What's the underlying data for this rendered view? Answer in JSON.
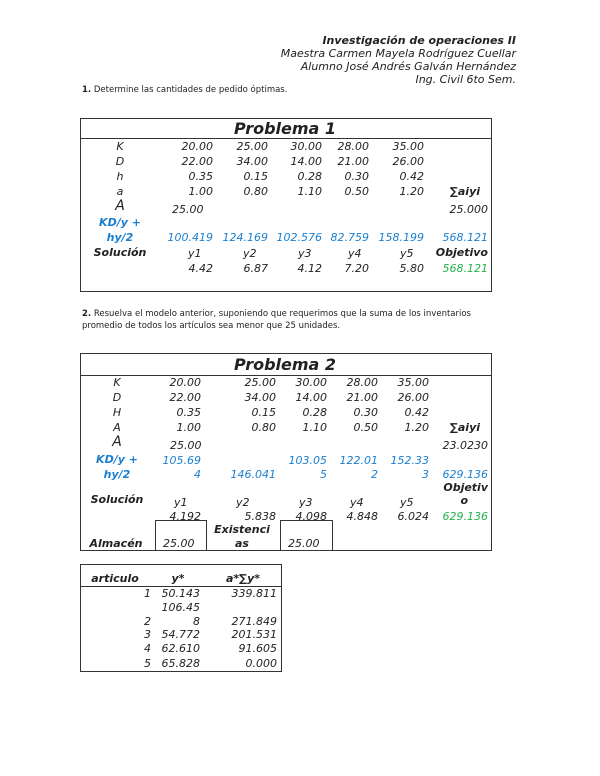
{
  "header": {
    "course": "Investigación de operaciones II",
    "teacher": "Maestra Carmen Mayela Rodríguez Cuellar",
    "student": "Alumno José Andrés Galván Hernández",
    "program": "Ing. Civil 6to Sem."
  },
  "question1": {
    "number": "1.",
    "text": "Determine las cantidades de pedido óptimas."
  },
  "question2": {
    "number": "2.",
    "text": "Resuelva el modelo anterior, suponiendo que requerimos que la suma de los inventarios promedio de todos los artículos sea menor que 25 unidades."
  },
  "problem1": {
    "title": "Problema 1",
    "K": {
      "label": "K",
      "values": [
        "20.00",
        "25.00",
        "30.00",
        "28.00",
        "35.00"
      ]
    },
    "D": {
      "label": "D",
      "values": [
        "22.00",
        "34.00",
        "14.00",
        "21.00",
        "26.00"
      ]
    },
    "h": {
      "label": "h",
      "values": [
        "0.35",
        "0.15",
        "0.28",
        "0.30",
        "0.42"
      ]
    },
    "a": {
      "label": "a",
      "values": [
        "1.00",
        "0.80",
        "1.10",
        "0.50",
        "1.20"
      ],
      "sum_label": "∑aiyi"
    },
    "A": {
      "label": "A",
      "value": "25.00",
      "sum": "25.000"
    },
    "cost": {
      "label1": "KD/y +",
      "label2": "hy/2",
      "values": [
        "100.419",
        "124.169",
        "102.576",
        "82.759",
        "158.199"
      ],
      "total": "568.121"
    },
    "solution": {
      "label": "Solución",
      "vars": [
        "y1",
        "y2",
        "y3",
        "y4",
        "y5"
      ],
      "objective_label": "Objetivo",
      "values": [
        "4.42",
        "6.87",
        "4.12",
        "7.20",
        "5.80"
      ],
      "objective": "568.121"
    }
  },
  "problem2": {
    "title": "Problema 2",
    "K": {
      "label": "K",
      "values": [
        "20.00",
        "25.00",
        "30.00",
        "28.00",
        "35.00"
      ]
    },
    "D": {
      "label": "D",
      "values": [
        "22.00",
        "34.00",
        "14.00",
        "21.00",
        "26.00"
      ]
    },
    "H": {
      "label": "H",
      "values": [
        "0.35",
        "0.15",
        "0.28",
        "0.30",
        "0.42"
      ]
    },
    "a": {
      "label": "A",
      "values": [
        "1.00",
        "0.80",
        "1.10",
        "0.50",
        "1.20"
      ],
      "sum_label": "∑aiyi"
    },
    "A": {
      "label": "A",
      "value": "25.00",
      "sum": "23.0230"
    },
    "cost": {
      "label1": "KD/y +",
      "label2": "hy/2",
      "line1": [
        "105.69",
        "",
        "103.05",
        "122.01",
        "152.33"
      ],
      "line2": [
        "4",
        "146.041",
        "5",
        "2",
        "3"
      ],
      "total": "629.136"
    },
    "solution": {
      "label": "Solución",
      "vars": [
        "y1",
        "y2",
        "y3",
        "y4",
        "y5"
      ],
      "objective_label1": "Objetiv",
      "objective_label2": "o",
      "values": [
        "4.192",
        "5.838",
        "4.098",
        "4.848",
        "6.024"
      ],
      "objective": "629.136"
    },
    "storage": {
      "label": "Almacén",
      "value": "25.00",
      "stock_label1": "Existenci",
      "stock_label2": "as",
      "stock_value": "25.00"
    }
  },
  "table3": {
    "headers": [
      "articulo",
      "y*",
      "a*∑y*"
    ],
    "rows": [
      {
        "n": "1",
        "y1": "50.143",
        "y2": "",
        "v": "339.811"
      },
      {
        "n": "2",
        "y1": "106.45",
        "y2": "8",
        "v": "271.849"
      },
      {
        "n": "3",
        "y1": "54.772",
        "y2": "",
        "v": "201.531"
      },
      {
        "n": "4",
        "y1": "62.610",
        "y2": "",
        "v": "91.605"
      },
      {
        "n": "5",
        "y1": "65.828",
        "y2": "",
        "v": "0.000"
      }
    ]
  }
}
